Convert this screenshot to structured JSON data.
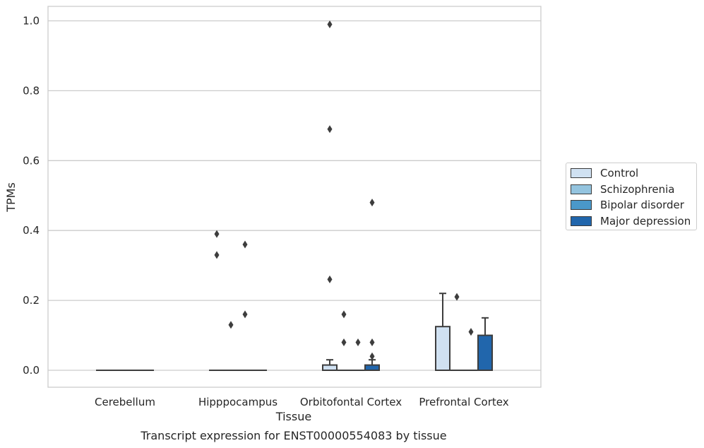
{
  "chart_data": {
    "type": "box",
    "title": "Transcript expression for ENST00000554083 by tissue",
    "xlabel": "Tissue",
    "ylabel": "TPMs",
    "ylim": [
      -0.05,
      1.04
    ],
    "yticks": [
      "0.0",
      "0.2",
      "0.4",
      "0.6",
      "0.8",
      "1.0"
    ],
    "categories": [
      "Cerebellum",
      "Hipppocampus",
      "Orbitofontal Cortex",
      "Prefrontal Cortex"
    ],
    "grid": true,
    "legend_position": "right",
    "series": [
      {
        "name": "Control",
        "color": "#d0e1f2",
        "boxes": [
          {
            "q1": 0,
            "median": 0,
            "q3": 0,
            "whisker_low": 0,
            "whisker_high": 0,
            "outliers": []
          },
          {
            "q1": 0,
            "median": 0,
            "q3": 0,
            "whisker_low": 0,
            "whisker_high": 0,
            "outliers": [
              0.39,
              0.33
            ]
          },
          {
            "q1": 0,
            "median": 0,
            "q3": 0.015,
            "whisker_low": 0,
            "whisker_high": 0.03,
            "outliers": [
              0.99,
              0.69,
              0.26
            ]
          },
          {
            "q1": 0,
            "median": 0,
            "q3": 0.125,
            "whisker_low": 0,
            "whisker_high": 0.22,
            "outliers": []
          }
        ]
      },
      {
        "name": "Schizophrenia",
        "color": "#94c4df",
        "boxes": [
          {
            "q1": 0,
            "median": 0,
            "q3": 0,
            "whisker_low": 0,
            "whisker_high": 0,
            "outliers": []
          },
          {
            "q1": 0,
            "median": 0,
            "q3": 0,
            "whisker_low": 0,
            "whisker_high": 0,
            "outliers": [
              0.13
            ]
          },
          {
            "q1": 0,
            "median": 0,
            "q3": 0,
            "whisker_low": 0,
            "whisker_high": 0,
            "outliers": [
              0.16,
              0.08
            ]
          },
          {
            "q1": 0,
            "median": 0,
            "q3": 0,
            "whisker_low": 0,
            "whisker_high": 0,
            "outliers": [
              0.21
            ]
          }
        ]
      },
      {
        "name": "Bipolar disorder",
        "color": "#4a98c9",
        "boxes": [
          {
            "q1": 0,
            "median": 0,
            "q3": 0,
            "whisker_low": 0,
            "whisker_high": 0,
            "outliers": []
          },
          {
            "q1": 0,
            "median": 0,
            "q3": 0,
            "whisker_low": 0,
            "whisker_high": 0,
            "outliers": [
              0.36,
              0.16
            ]
          },
          {
            "q1": 0,
            "median": 0,
            "q3": 0,
            "whisker_low": 0,
            "whisker_high": 0,
            "outliers": [
              0.08
            ]
          },
          {
            "q1": 0,
            "median": 0,
            "q3": 0,
            "whisker_low": 0,
            "whisker_high": 0,
            "outliers": [
              0.11
            ]
          }
        ]
      },
      {
        "name": "Major depression",
        "color": "#2166ac",
        "boxes": [
          {
            "q1": 0,
            "median": 0,
            "q3": 0,
            "whisker_low": 0,
            "whisker_high": 0,
            "outliers": []
          },
          {
            "q1": 0,
            "median": 0,
            "q3": 0,
            "whisker_low": 0,
            "whisker_high": 0,
            "outliers": []
          },
          {
            "q1": 0,
            "median": 0,
            "q3": 0.015,
            "whisker_low": 0,
            "whisker_high": 0.03,
            "outliers": [
              0.48,
              0.08,
              0.04
            ]
          },
          {
            "q1": 0,
            "median": 0,
            "q3": 0.1,
            "whisker_low": 0,
            "whisker_high": 0.15,
            "outliers": []
          }
        ]
      }
    ]
  }
}
